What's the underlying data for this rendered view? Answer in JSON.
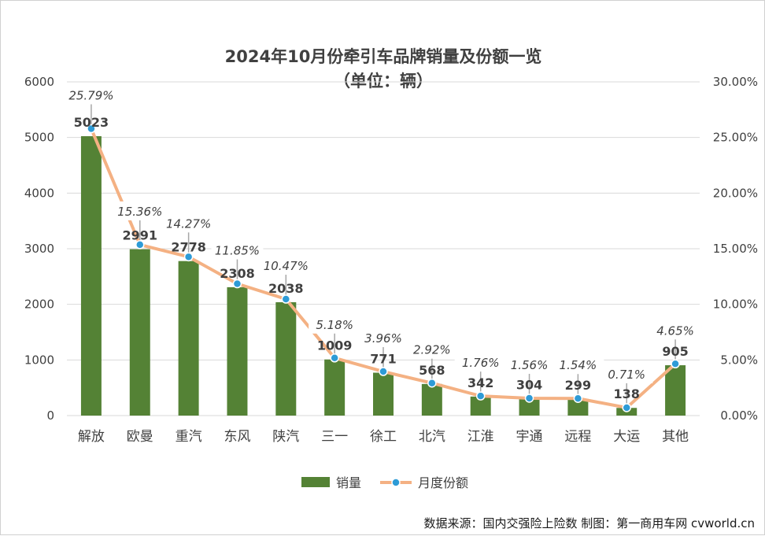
{
  "chart_data": {
    "type": "bar",
    "title": "2024年10月份牵引车品牌销量及份额一览",
    "subtitle": "（单位：辆）",
    "categories": [
      "解放",
      "欧曼",
      "重汽",
      "东风",
      "陕汽",
      "三一",
      "徐工",
      "北汽",
      "江淮",
      "宇通",
      "远程",
      "大运",
      "其他"
    ],
    "series": [
      {
        "name": "销量",
        "type": "bar",
        "axis": "left",
        "color": "#548235",
        "values": [
          5023,
          2991,
          2778,
          2308,
          2038,
          1009,
          771,
          568,
          342,
          304,
          299,
          138,
          905
        ],
        "labels": [
          "5023",
          "2991",
          "2778",
          "2308",
          "2038",
          "1009",
          "771",
          "568",
          "342",
          "304",
          "299",
          "138",
          "905"
        ]
      },
      {
        "name": "月度份额",
        "type": "line",
        "axis": "right",
        "color": "#F4B183",
        "marker_color": "#2E9BD6",
        "values": [
          25.79,
          15.36,
          14.27,
          11.85,
          10.47,
          5.18,
          3.96,
          2.92,
          1.76,
          1.56,
          1.54,
          0.71,
          4.65
        ],
        "labels": [
          "25.79%",
          "15.36%",
          "14.27%",
          "11.85%",
          "10.47%",
          "5.18%",
          "3.96%",
          "2.92%",
          "1.76%",
          "1.56%",
          "1.54%",
          "0.71%",
          "4.65%"
        ]
      }
    ],
    "y_left": {
      "min": 0,
      "max": 6000,
      "ticks": [
        "0",
        "1000",
        "2000",
        "3000",
        "4000",
        "5000",
        "6000"
      ]
    },
    "y_right": {
      "min": 0,
      "max": 30,
      "ticks": [
        "0.00%",
        "5.00%",
        "10.00%",
        "15.00%",
        "20.00%",
        "25.00%",
        "30.00%"
      ]
    },
    "grid": true,
    "legend_position": "bottom"
  },
  "source": "数据来源：国内交强险上险数 制图：第一商用车网 cvworld.cn"
}
